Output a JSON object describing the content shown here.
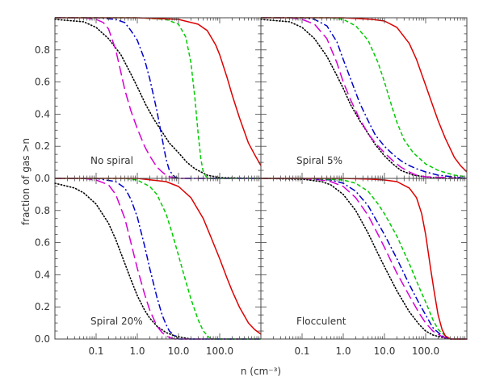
{
  "figure": {
    "xlabel": "n (cm⁻³)",
    "ylabel": "fraction of gas >n"
  },
  "chart_data": [
    {
      "type": "line",
      "panel_label": "No spiral",
      "x_scale": "log",
      "xlim": [
        0.01,
        1000
      ],
      "ylim": [
        0,
        1
      ],
      "x_ticks": [
        "0.1",
        "1.0",
        "10.0",
        "100.0"
      ],
      "y_ticks": [
        "0.0",
        "0.2",
        "0.4",
        "0.6",
        "0.8"
      ],
      "grid": false,
      "series": [
        {
          "color": "#000000",
          "dash": "dotted",
          "x": [
            0.01,
            0.05,
            0.1,
            0.2,
            0.4,
            0.7,
            1.0,
            1.6,
            2.5,
            4,
            6,
            10,
            16,
            25,
            50,
            100,
            1000
          ],
          "y": [
            0.99,
            0.975,
            0.94,
            0.87,
            0.77,
            0.65,
            0.57,
            0.46,
            0.37,
            0.29,
            0.22,
            0.16,
            0.1,
            0.06,
            0.02,
            0.005,
            0.0
          ]
        },
        {
          "color": "#d400d4",
          "dash": "long-dash",
          "x": [
            0.01,
            0.05,
            0.1,
            0.15,
            0.2,
            0.3,
            0.4,
            0.5,
            0.7,
            1.0,
            1.5,
            2.0,
            3.0,
            4.0,
            5.0,
            6.0,
            10,
            1000
          ],
          "y": [
            1.0,
            1.0,
            0.99,
            0.97,
            0.93,
            0.8,
            0.66,
            0.55,
            0.42,
            0.31,
            0.2,
            0.14,
            0.07,
            0.04,
            0.02,
            0.01,
            0.0,
            0.0
          ]
        },
        {
          "color": "#0000cc",
          "dash": "dash-dot",
          "x": [
            0.01,
            0.1,
            0.3,
            0.5,
            0.7,
            1.0,
            1.5,
            2.0,
            3.0,
            4.0,
            5.0,
            6.0,
            8.0,
            10,
            1000
          ],
          "y": [
            1.0,
            1.0,
            0.99,
            0.97,
            0.92,
            0.86,
            0.74,
            0.62,
            0.42,
            0.25,
            0.12,
            0.05,
            0.01,
            0.0,
            0.0
          ]
        },
        {
          "color": "#00cc00",
          "dash": "short-dash",
          "x": [
            0.01,
            1.0,
            5.0,
            10,
            15,
            20,
            25,
            30,
            35,
            40,
            50,
            1000
          ],
          "y": [
            1.0,
            1.0,
            0.99,
            0.96,
            0.88,
            0.72,
            0.5,
            0.28,
            0.12,
            0.04,
            0.0,
            0.0
          ]
        },
        {
          "color": "#dd0000",
          "dash": "solid",
          "x": [
            0.01,
            1.0,
            10,
            30,
            50,
            80,
            100,
            150,
            200,
            300,
            500,
            700,
            1000
          ],
          "y": [
            1.0,
            1.0,
            0.99,
            0.96,
            0.92,
            0.83,
            0.77,
            0.63,
            0.52,
            0.38,
            0.22,
            0.15,
            0.08
          ]
        }
      ]
    },
    {
      "type": "line",
      "panel_label": "Spiral 5%",
      "x_scale": "log",
      "xlim": [
        0.01,
        1000
      ],
      "ylim": [
        0,
        1
      ],
      "x_ticks": [
        "0.1",
        "1.0",
        "10.0",
        "100.0"
      ],
      "y_ticks": [
        "0.0",
        "0.2",
        "0.4",
        "0.6",
        "0.8"
      ],
      "grid": false,
      "series": [
        {
          "color": "#000000",
          "dash": "dotted",
          "x": [
            0.01,
            0.05,
            0.1,
            0.2,
            0.4,
            0.7,
            1.0,
            1.5,
            2.5,
            4,
            6,
            10,
            16,
            25,
            50,
            100,
            200,
            1000
          ],
          "y": [
            0.99,
            0.975,
            0.94,
            0.87,
            0.76,
            0.64,
            0.56,
            0.46,
            0.36,
            0.28,
            0.21,
            0.14,
            0.09,
            0.05,
            0.02,
            0.01,
            0.0,
            0.0
          ]
        },
        {
          "color": "#d400d4",
          "dash": "long-dash",
          "x": [
            0.01,
            0.05,
            0.1,
            0.2,
            0.4,
            0.7,
            1.0,
            1.5,
            2.5,
            4,
            6,
            10,
            16,
            25,
            40,
            60,
            100,
            1000
          ],
          "y": [
            1.0,
            1.0,
            0.99,
            0.96,
            0.87,
            0.72,
            0.6,
            0.49,
            0.37,
            0.28,
            0.22,
            0.16,
            0.11,
            0.07,
            0.04,
            0.02,
            0.01,
            0.0
          ]
        },
        {
          "color": "#0000cc",
          "dash": "dash-dot",
          "x": [
            0.01,
            0.1,
            0.2,
            0.4,
            0.7,
            1.0,
            1.5,
            2.5,
            4,
            6,
            10,
            16,
            25,
            40,
            60,
            100,
            200,
            1000
          ],
          "y": [
            1.0,
            1.0,
            0.99,
            0.95,
            0.85,
            0.74,
            0.62,
            0.47,
            0.36,
            0.27,
            0.2,
            0.15,
            0.11,
            0.08,
            0.06,
            0.04,
            0.02,
            0.0
          ]
        },
        {
          "color": "#00cc00",
          "dash": "short-dash",
          "x": [
            0.01,
            0.5,
            1.0,
            2.0,
            4.0,
            7.0,
            10,
            15,
            20,
            30,
            50,
            100,
            200,
            500,
            1000
          ],
          "y": [
            1.0,
            1.0,
            0.99,
            0.95,
            0.86,
            0.72,
            0.6,
            0.45,
            0.35,
            0.24,
            0.16,
            0.09,
            0.05,
            0.02,
            0.01
          ]
        },
        {
          "color": "#dd0000",
          "dash": "solid",
          "x": [
            0.01,
            1.0,
            5.0,
            10,
            20,
            40,
            60,
            100,
            150,
            200,
            300,
            500,
            700,
            1000
          ],
          "y": [
            1.0,
            1.0,
            0.99,
            0.98,
            0.94,
            0.84,
            0.74,
            0.58,
            0.45,
            0.36,
            0.25,
            0.13,
            0.08,
            0.04
          ]
        }
      ]
    },
    {
      "type": "line",
      "panel_label": "Spiral 20%",
      "x_scale": "log",
      "xlim": [
        0.01,
        1000
      ],
      "ylim": [
        0,
        1
      ],
      "x_ticks": [
        "0.1",
        "1.0",
        "10.0",
        "100.0"
      ],
      "y_ticks": [
        "0.0",
        "0.2",
        "0.4",
        "0.6",
        "0.8"
      ],
      "grid": false,
      "series": [
        {
          "color": "#000000",
          "dash": "dotted",
          "x": [
            0.01,
            0.03,
            0.05,
            0.1,
            0.2,
            0.3,
            0.5,
            0.7,
            1.0,
            1.5,
            2.0,
            3.0,
            5.0,
            8.0,
            12,
            20,
            30,
            1000
          ],
          "y": [
            0.97,
            0.94,
            0.91,
            0.84,
            0.72,
            0.62,
            0.47,
            0.37,
            0.27,
            0.18,
            0.13,
            0.08,
            0.04,
            0.02,
            0.01,
            0.0,
            0.0,
            0.0
          ]
        },
        {
          "color": "#d400d4",
          "dash": "long-dash",
          "x": [
            0.01,
            0.05,
            0.1,
            0.2,
            0.3,
            0.5,
            0.7,
            1.0,
            1.5,
            2.0,
            3.0,
            4.0,
            5.0,
            6.0,
            8.0,
            1000
          ],
          "y": [
            1.0,
            1.0,
            0.99,
            0.96,
            0.9,
            0.75,
            0.6,
            0.44,
            0.28,
            0.18,
            0.08,
            0.04,
            0.02,
            0.01,
            0.0,
            0.0
          ]
        },
        {
          "color": "#0000cc",
          "dash": "dash-dot",
          "x": [
            0.01,
            0.1,
            0.3,
            0.5,
            0.7,
            1.0,
            1.5,
            2.0,
            3.0,
            4.0,
            5.0,
            6.0,
            8.0,
            10,
            1000
          ],
          "y": [
            1.0,
            1.0,
            0.98,
            0.94,
            0.87,
            0.76,
            0.58,
            0.44,
            0.26,
            0.15,
            0.09,
            0.05,
            0.02,
            0.0,
            0.0
          ]
        },
        {
          "color": "#00cc00",
          "dash": "short-dash",
          "x": [
            0.01,
            0.5,
            1.0,
            2.0,
            3.0,
            5.0,
            7.0,
            10,
            15,
            20,
            30,
            40,
            60,
            1000
          ],
          "y": [
            1.0,
            1.0,
            0.99,
            0.95,
            0.9,
            0.78,
            0.66,
            0.52,
            0.36,
            0.25,
            0.12,
            0.05,
            0.0,
            0.0
          ]
        },
        {
          "color": "#dd0000",
          "dash": "solid",
          "x": [
            0.01,
            1.0,
            5.0,
            10,
            20,
            40,
            60,
            100,
            150,
            200,
            300,
            500,
            700,
            1000
          ],
          "y": [
            1.0,
            1.0,
            0.98,
            0.95,
            0.88,
            0.75,
            0.64,
            0.5,
            0.38,
            0.3,
            0.2,
            0.1,
            0.06,
            0.03
          ]
        }
      ]
    },
    {
      "type": "line",
      "panel_label": "Flocculent",
      "x_scale": "log",
      "xlim": [
        0.01,
        1000
      ],
      "ylim": [
        0,
        1
      ],
      "x_ticks": [
        "0.1",
        "1.0",
        "10.0",
        "100.0"
      ],
      "y_ticks": [
        "0.0",
        "0.2",
        "0.4",
        "0.6",
        "0.8"
      ],
      "grid": false,
      "series": [
        {
          "color": "#000000",
          "dash": "dotted",
          "x": [
            0.01,
            0.1,
            0.3,
            0.5,
            1.0,
            2.0,
            4.0,
            7.0,
            10,
            20,
            40,
            70,
            100,
            150,
            250,
            400,
            1000
          ],
          "y": [
            1.0,
            0.995,
            0.98,
            0.96,
            0.9,
            0.8,
            0.66,
            0.53,
            0.45,
            0.3,
            0.17,
            0.09,
            0.05,
            0.025,
            0.01,
            0.0,
            0.0
          ]
        },
        {
          "color": "#d400d4",
          "dash": "long-dash",
          "x": [
            0.01,
            0.1,
            0.3,
            0.5,
            1.0,
            2.0,
            4.0,
            7.0,
            10,
            20,
            40,
            70,
            100,
            150,
            250,
            400,
            1000
          ],
          "y": [
            1.0,
            1.0,
            0.99,
            0.98,
            0.95,
            0.88,
            0.77,
            0.65,
            0.57,
            0.41,
            0.27,
            0.16,
            0.1,
            0.05,
            0.015,
            0.0,
            0.0
          ]
        },
        {
          "color": "#0000cc",
          "dash": "dash-dot",
          "x": [
            0.01,
            0.1,
            0.3,
            0.5,
            1.0,
            2.0,
            4.0,
            7.0,
            10,
            20,
            40,
            70,
            100,
            150,
            250,
            400,
            1000
          ],
          "y": [
            1.0,
            1.0,
            0.995,
            0.99,
            0.97,
            0.92,
            0.83,
            0.72,
            0.65,
            0.5,
            0.34,
            0.22,
            0.15,
            0.07,
            0.02,
            0.0,
            0.0
          ]
        },
        {
          "color": "#00cc00",
          "dash": "short-dash",
          "x": [
            0.01,
            0.1,
            0.5,
            1.0,
            2.0,
            4.0,
            7.0,
            10,
            20,
            40,
            70,
            100,
            150,
            200,
            300,
            400,
            1000
          ],
          "y": [
            1.0,
            1.0,
            0.995,
            0.99,
            0.97,
            0.92,
            0.84,
            0.78,
            0.64,
            0.47,
            0.32,
            0.23,
            0.12,
            0.06,
            0.02,
            0.0,
            0.0
          ]
        },
        {
          "color": "#dd0000",
          "dash": "solid",
          "x": [
            0.01,
            1.0,
            5.0,
            10,
            20,
            40,
            60,
            80,
            100,
            130,
            160,
            200,
            250,
            300,
            400,
            1000
          ],
          "y": [
            1.0,
            1.0,
            0.995,
            0.99,
            0.98,
            0.94,
            0.88,
            0.78,
            0.65,
            0.45,
            0.3,
            0.15,
            0.06,
            0.02,
            0.0,
            0.0
          ]
        }
      ]
    }
  ]
}
